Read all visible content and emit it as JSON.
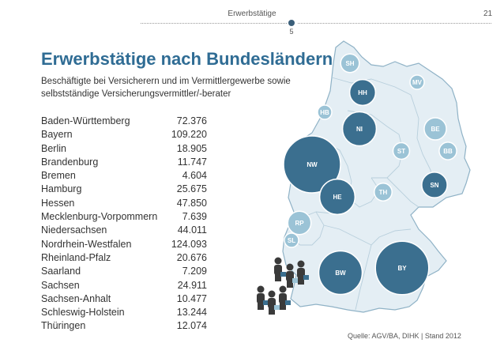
{
  "header": {
    "section": "Erwerbstätige",
    "page_number": "21",
    "sub_number": "5"
  },
  "title": "Erwerbstätige nach Bundesländern",
  "subtitle": "Beschäftigte bei Versicherern und im Vermittlergewerbe sowie selbstständige Versicherungsvermittler/-berater",
  "rows": [
    {
      "state": "Baden-Württemberg",
      "value": "72.376"
    },
    {
      "state": "Bayern",
      "value": "109.220"
    },
    {
      "state": "Berlin",
      "value": "18.905"
    },
    {
      "state": "Brandenburg",
      "value": "11.747"
    },
    {
      "state": "Bremen",
      "value": "4.604"
    },
    {
      "state": "Hamburg",
      "value": "25.675"
    },
    {
      "state": "Hessen",
      "value": "47.850"
    },
    {
      "state": "Mecklenburg-Vorpommern",
      "value": "7.639"
    },
    {
      "state": "Niedersachsen",
      "value": "44.011"
    },
    {
      "state": "Nordrhein-Westfalen",
      "value": "124.093"
    },
    {
      "state": "Rheinland-Pfalz",
      "value": "20.676"
    },
    {
      "state": "Saarland",
      "value": "7.209"
    },
    {
      "state": "Sachsen",
      "value": "24.911"
    },
    {
      "state": "Sachsen-Anhalt",
      "value": "10.477"
    },
    {
      "state": "Schleswig-Holstein",
      "value": "13.244"
    },
    {
      "state": "Thüringen",
      "value": "12.074"
    }
  ],
  "map_bubbles": [
    {
      "code": "SH",
      "value": 13244
    },
    {
      "code": "HH",
      "value": 25675
    },
    {
      "code": "HB",
      "value": 4604
    },
    {
      "code": "MV",
      "value": 7639
    },
    {
      "code": "NI",
      "value": 44011
    },
    {
      "code": "BE",
      "value": 18905
    },
    {
      "code": "BB",
      "value": 11747
    },
    {
      "code": "ST",
      "value": 10477
    },
    {
      "code": "NW",
      "value": 124093
    },
    {
      "code": "HE",
      "value": 47850
    },
    {
      "code": "TH",
      "value": 12074
    },
    {
      "code": "SN",
      "value": 24911
    },
    {
      "code": "RP",
      "value": 20676
    },
    {
      "code": "SL",
      "value": 7209
    },
    {
      "code": "BW",
      "value": 72376
    },
    {
      "code": "BY",
      "value": 109220
    }
  ],
  "source": "Quelle: AGV/BA, DIHK  |  Stand 2012",
  "colors": {
    "title": "#2f6c94",
    "bubble_dark": "#3b6f8f",
    "bubble_light": "#9bc3d6",
    "map_fill": "#e4eef4",
    "map_stroke": "#8fb2c6"
  }
}
